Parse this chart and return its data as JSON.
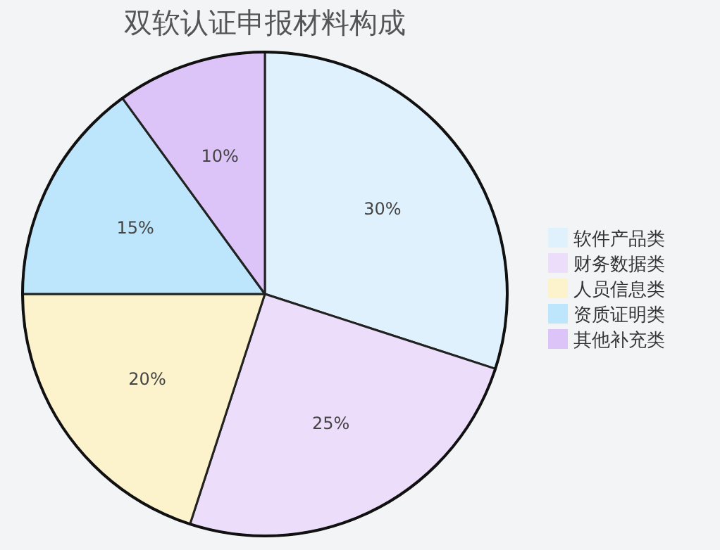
{
  "chart_data": {
    "type": "pie",
    "title": "双软认证申报材料构成",
    "categories": [
      "软件产品类",
      "财务数据类",
      "人员信息类",
      "资质证明类",
      "其他补充类"
    ],
    "values": [
      30,
      25,
      20,
      15,
      10
    ],
    "colors": [
      "#dff1fc",
      "#ecdefb",
      "#fcf3cc",
      "#bde5fb",
      "#dcc3f8"
    ],
    "value_labels": [
      "30%",
      "25%",
      "20%",
      "15%",
      "10%"
    ],
    "legend": "right"
  }
}
